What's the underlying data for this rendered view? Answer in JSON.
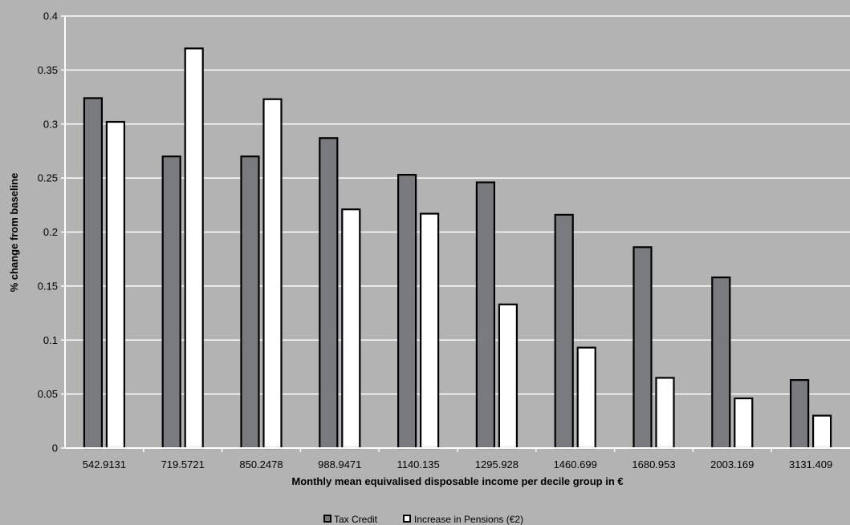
{
  "chart_data": {
    "type": "bar",
    "categories": [
      "542.9131",
      "719.5721",
      "850.2478",
      "988.9471",
      "1140.135",
      "1295.928",
      "1460.699",
      "1680.953",
      "2003.169",
      "3131.409"
    ],
    "series": [
      {
        "name": "Tax Credit",
        "color": "#7a7b80",
        "values": [
          0.324,
          0.27,
          0.27,
          0.287,
          0.253,
          0.246,
          0.216,
          0.186,
          0.158,
          0.063
        ]
      },
      {
        "name": "Increase in Pensions (€2)",
        "color": "#ffffff",
        "values": [
          0.302,
          0.37,
          0.323,
          0.221,
          0.217,
          0.133,
          0.093,
          0.065,
          0.046,
          0.03
        ]
      }
    ],
    "xlabel": "Monthly mean equivalised disposable income per decile group in €",
    "ylabel": "% change from baseline",
    "ylim": [
      0,
      0.4
    ],
    "yticks": [
      "0",
      "0.05",
      "0.1",
      "0.15",
      "0.2",
      "0.25",
      "0.3",
      "0.35",
      "0.4"
    ],
    "grid": true,
    "legend_position": "bottom"
  }
}
